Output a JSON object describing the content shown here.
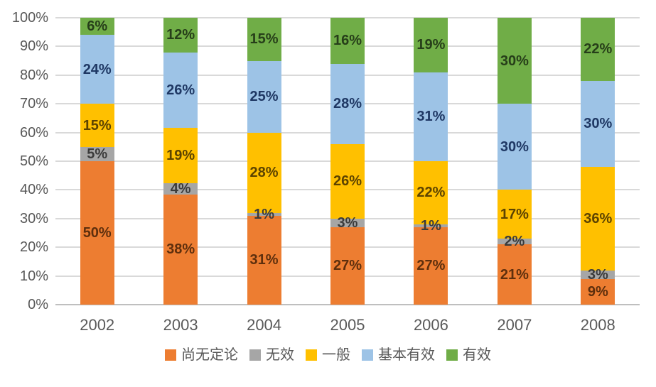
{
  "chart_data": {
    "type": "bar",
    "variant": "stacked-100-percent-column",
    "title": "",
    "xlabel": "",
    "ylabel": "",
    "categories": [
      "2002",
      "2003",
      "2004",
      "2005",
      "2006",
      "2007",
      "2008"
    ],
    "series": [
      {
        "name": "尚无定论",
        "color": "#ED7D31",
        "label_color": "#5e2f0d",
        "values": [
          50,
          38,
          31,
          27,
          27,
          21,
          9
        ]
      },
      {
        "name": "无效",
        "color": "#A6A6A6",
        "label_color": "#3b3b3b",
        "values": [
          5,
          4,
          1,
          3,
          1,
          2,
          3
        ]
      },
      {
        "name": "一般",
        "color": "#FFC000",
        "label_color": "#5c4300",
        "values": [
          15,
          19,
          28,
          26,
          22,
          17,
          36
        ]
      },
      {
        "name": "基本有效",
        "color": "#9DC3E6",
        "label_color": "#1f3864",
        "values": [
          24,
          26,
          25,
          28,
          31,
          30,
          30
        ]
      },
      {
        "name": "有效",
        "color": "#70AD47",
        "label_color": "#263e19",
        "values": [
          6,
          12,
          15,
          16,
          19,
          30,
          22
        ]
      }
    ],
    "data_label_suffix": "%",
    "y_ticks": [
      "0%",
      "10%",
      "20%",
      "30%",
      "40%",
      "50%",
      "60%",
      "70%",
      "80%",
      "90%",
      "100%"
    ],
    "ylim": [
      0,
      100
    ],
    "grid": true,
    "gridline_color": "#d9d9d9",
    "axis_line_color": "#bfbfbf",
    "tick_label_color": "#595959",
    "legend_position": "bottom"
  }
}
